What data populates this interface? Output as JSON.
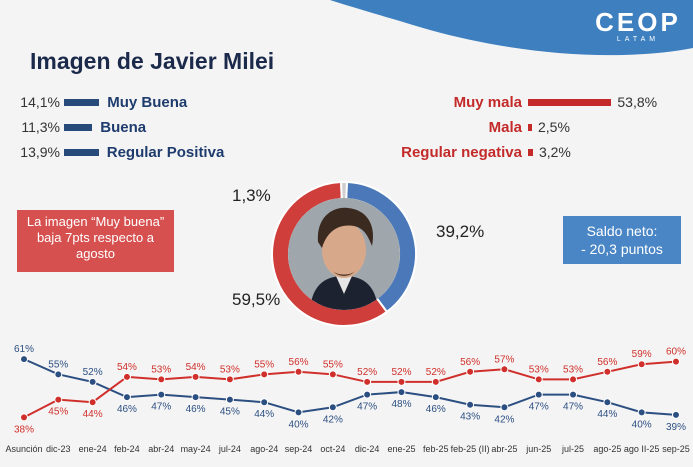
{
  "header": {
    "title": "Imagen de Javier Milei",
    "logo_main": "CEOP",
    "logo_sub": "LATAM"
  },
  "positive": [
    {
      "pct": "14,1%",
      "value": 14.1,
      "label": "Muy Buena"
    },
    {
      "pct": "11,3%",
      "value": 11.3,
      "label": "Buena"
    },
    {
      "pct": "13,9%",
      "value": 13.9,
      "label": "Regular Positiva"
    }
  ],
  "negative": [
    {
      "pct": "53,8%",
      "value": 53.8,
      "label": "Muy mala"
    },
    {
      "pct": "2,5%",
      "value": 2.5,
      "label": "Mala"
    },
    {
      "pct": "3,2%",
      "value": 3.2,
      "label": "Regular negativa"
    }
  ],
  "callout_left": "La imagen “Muy buena” baja 7pts respecto a agosto",
  "callout_right": {
    "line1": "Saldo neto:",
    "line2": "- 20,3 puntos"
  },
  "colors": {
    "positive": "#3f72b0",
    "negative": "#d13b35",
    "gray": "#c8c8c8",
    "wave": "#3d7fbf"
  },
  "chart_data": [
    {
      "type": "pie",
      "slices": [
        {
          "label": "39,2%",
          "value": 39.2,
          "color": "#4a78b8"
        },
        {
          "label": "59,5%",
          "value": 59.5,
          "color": "#cf3e3a"
        },
        {
          "label": "1,3%",
          "value": 1.3,
          "color": "#cfcfcf"
        }
      ]
    },
    {
      "type": "line",
      "categories": [
        "Asunción",
        "dic-23",
        "ene-24",
        "feb-24",
        "abr-24",
        "may-24",
        "jul-24",
        "ago-24",
        "sep-24",
        "oct-24",
        "dic-24",
        "ene-25",
        "feb-25",
        "feb-25 (II)",
        "abr-25",
        "jun-25",
        "jul-25",
        "ago-25",
        "ago II-25",
        "sep-25"
      ],
      "series": [
        {
          "color": "#2c4f82",
          "values": [
            61,
            55,
            52,
            46,
            47,
            46,
            45,
            44,
            40,
            42,
            47,
            48,
            46,
            43,
            42,
            47,
            47,
            44,
            40,
            39
          ]
        },
        {
          "color": "#d0302b",
          "values": [
            38,
            45,
            44,
            54,
            53,
            54,
            53,
            55,
            56,
            55,
            52,
            52,
            52,
            56,
            57,
            53,
            53,
            56,
            59,
            60
          ]
        }
      ],
      "ylim": [
        35,
        65
      ]
    }
  ]
}
